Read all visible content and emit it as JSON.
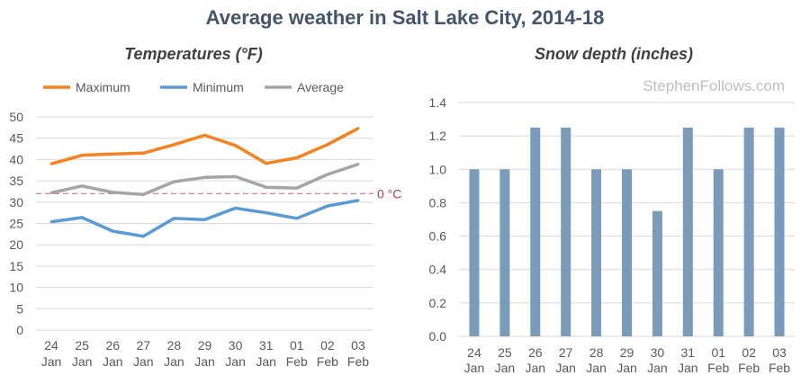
{
  "title": "Average weather in Salt Lake City, 2014-18",
  "watermark": "StephenFollows.com",
  "chart_data": [
    {
      "type": "line",
      "title": "Temperatures (°F)",
      "categories": [
        [
          "24",
          "Jan"
        ],
        [
          "25",
          "Jan"
        ],
        [
          "26",
          "Jan"
        ],
        [
          "27",
          "Jan"
        ],
        [
          "28",
          "Jan"
        ],
        [
          "29",
          "Jan"
        ],
        [
          "30",
          "Jan"
        ],
        [
          "31",
          "Jan"
        ],
        [
          "01",
          "Feb"
        ],
        [
          "02",
          "Feb"
        ],
        [
          "03",
          "Feb"
        ]
      ],
      "ylim": [
        0,
        50
      ],
      "yticks": [
        0,
        5,
        10,
        15,
        20,
        25,
        30,
        35,
        40,
        45,
        50
      ],
      "grid": true,
      "legend": "top",
      "series": [
        {
          "name": "Maximum",
          "color": "#f5821f",
          "values": [
            39,
            41,
            41.3,
            41.5,
            43.5,
            45.7,
            43.3,
            39.1,
            40.4,
            43.5,
            47.3
          ]
        },
        {
          "name": "Minimum",
          "color": "#5b9bd5",
          "values": [
            25.4,
            26.4,
            23.2,
            22,
            26.2,
            25.9,
            28.6,
            27.5,
            26.2,
            29.1,
            30.4
          ]
        },
        {
          "name": "Average",
          "color": "#a5a5a5",
          "values": [
            32.2,
            33.8,
            32.3,
            31.8,
            34.8,
            35.8,
            36,
            33.5,
            33.3,
            36.5,
            38.9
          ]
        }
      ],
      "annotation": {
        "label": "0 °C",
        "value": 32,
        "color": "#c0393b"
      }
    },
    {
      "type": "bar",
      "title": "Snow depth (inches)",
      "categories": [
        [
          "24",
          "Jan"
        ],
        [
          "25",
          "Jan"
        ],
        [
          "26",
          "Jan"
        ],
        [
          "27",
          "Jan"
        ],
        [
          "28",
          "Jan"
        ],
        [
          "29",
          "Jan"
        ],
        [
          "30",
          "Jan"
        ],
        [
          "31",
          "Jan"
        ],
        [
          "01",
          "Feb"
        ],
        [
          "02",
          "Feb"
        ],
        [
          "03",
          "Feb"
        ]
      ],
      "values": [
        1.0,
        1.0,
        1.25,
        1.25,
        1.0,
        1.0,
        0.75,
        1.25,
        1.0,
        1.25,
        1.25
      ],
      "color": "#7a9cba",
      "ylim": [
        0,
        1.4
      ],
      "yticks": [
        "0.0",
        "0.2",
        "0.4",
        "0.6",
        "0.8",
        "1.0",
        "1.2",
        "1.4"
      ],
      "grid": true
    }
  ]
}
